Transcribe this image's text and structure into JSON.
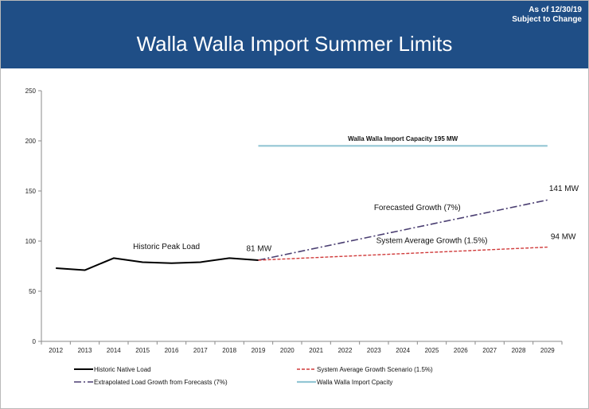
{
  "header": {
    "as_of": "As of 12/30/19",
    "subject": "Subject to Change",
    "title": "Walla Walla Import Summer Limits"
  },
  "colors": {
    "header_bg": "#1f4e86",
    "historic": "#000000",
    "forecast": "#4b3f72",
    "system": "#d03a3a",
    "capacity": "#93c6d4"
  },
  "chart_data": {
    "type": "line",
    "title": "Walla Walla Import Summer Limits",
    "xlabel": "",
    "ylabel": "",
    "ylim": [
      0,
      250
    ],
    "yticks": [
      0,
      50,
      100,
      150,
      200,
      250
    ],
    "categories": [
      "2012",
      "2013",
      "2014",
      "2015",
      "2016",
      "2017",
      "2018",
      "2019",
      "2020",
      "2021",
      "2022",
      "2023",
      "2024",
      "2025",
      "2026",
      "2027",
      "2028",
      "2029"
    ],
    "grid": false,
    "legend_position": "bottom",
    "series": [
      {
        "key": "historic",
        "name": "Historic Native Load",
        "x": [
          "2012",
          "2013",
          "2014",
          "2015",
          "2016",
          "2017",
          "2018",
          "2019"
        ],
        "values": [
          73,
          71,
          83,
          79,
          78,
          79,
          83,
          81
        ]
      },
      {
        "key": "forecast",
        "name": "Extrapolated Load Growth from Forecasts (7%)",
        "x": [
          "2019",
          "2029"
        ],
        "values": [
          81,
          141
        ]
      },
      {
        "key": "system",
        "name": "System Average Growth Scenario (1.5%)",
        "x": [
          "2019",
          "2029"
        ],
        "values": [
          81,
          94
        ]
      },
      {
        "key": "capacity",
        "name": "Walla Walla Import Cpacity",
        "x": [
          "2019",
          "2029"
        ],
        "values": [
          195,
          195
        ]
      }
    ],
    "annotations": [
      {
        "key": "capacity_label",
        "text": "Walla Walla Import Capacity 195 MW",
        "x": "2024",
        "y": 200
      },
      {
        "key": "forecast_label",
        "text": "Forecasted Growth (7%)",
        "x": "2023",
        "y": 131
      },
      {
        "key": "system_label",
        "text": "System Average Growth (1.5%)",
        "x": "2025",
        "y": 98
      },
      {
        "key": "historic_label",
        "text": "Historic Peak Load",
        "x": "2015",
        "y": 92
      },
      {
        "key": "start_label",
        "text": "81 MW",
        "x": "2019",
        "y": 90
      },
      {
        "key": "forecast_end_label",
        "text": "141 MW",
        "x": "2029",
        "y": 150
      },
      {
        "key": "system_end_label",
        "text": "94 MW",
        "x": "2029",
        "y": 102
      }
    ]
  }
}
